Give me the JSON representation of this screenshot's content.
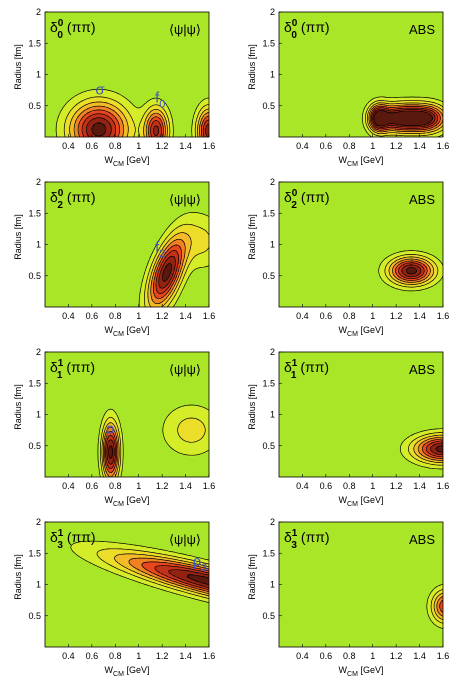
{
  "chart_data": [
    {
      "type": "heatmap",
      "title": "δ0 0 (ππ)",
      "tag": "⟨ψ|ψ⟩",
      "xlabel": "W_CM [GeV]",
      "ylabel": "Radius [fm]",
      "xlim": [
        0.2,
        1.6
      ],
      "ylim": [
        0,
        2
      ],
      "xticks": [
        "0.4",
        "0.6",
        "0.8",
        "1",
        "1.2",
        "1.4",
        "1.6"
      ],
      "yticks": [
        "0.5",
        "1",
        "1.5",
        "2"
      ],
      "grid": false,
      "peaks": [
        {
          "x": 0.66,
          "y": 0.12,
          "sx": 0.17,
          "sy": 0.3,
          "amp": 1.0
        },
        {
          "x": 1.15,
          "y": 0.1,
          "sx": 0.07,
          "sy": 0.25,
          "amp": 0.85
        },
        {
          "x": 1.6,
          "y": 0.1,
          "sx": 0.07,
          "sy": 0.25,
          "amp": 0.9
        }
      ],
      "annotations": [
        {
          "text": "σ",
          "x": 0.63,
          "y": 0.68
        },
        {
          "text": "f0",
          "x": 1.14,
          "y": 0.55
        }
      ]
    },
    {
      "type": "heatmap",
      "title": "δ0 0 (ππ)",
      "tag": "ABS",
      "xlabel": "W_CM [GeV]",
      "ylabel": "Radius [fm]",
      "xlim": [
        0.2,
        1.6
      ],
      "ylim": [
        0,
        2
      ],
      "xticks": [
        "0.4",
        "0.6",
        "0.8",
        "1",
        "1.2",
        "1.4",
        "1.6"
      ],
      "yticks": [
        "0.5",
        "1",
        "1.5",
        "2"
      ],
      "grid": false,
      "peaks": [
        {
          "x": 1.05,
          "y": 0.3,
          "sx": 0.06,
          "sy": 0.15,
          "amp": 0.9
        },
        {
          "x": 1.22,
          "y": 0.3,
          "sx": 0.12,
          "sy": 0.15,
          "amp": 1.0
        },
        {
          "x": 1.45,
          "y": 0.3,
          "sx": 0.12,
          "sy": 0.15,
          "amp": 1.0
        }
      ],
      "annotations": []
    },
    {
      "type": "heatmap",
      "title": "δ0 2 (ππ)",
      "tag": "⟨ψ|ψ⟩",
      "xlabel": "W_CM [GeV]",
      "ylabel": "Radius [fm]",
      "xlim": [
        0.2,
        1.6
      ],
      "ylim": [
        0,
        2
      ],
      "xticks": [
        "0.4",
        "0.6",
        "0.8",
        "1",
        "1.2",
        "1.4",
        "1.6"
      ],
      "yticks": [
        "0.5",
        "1",
        "1.5",
        "2"
      ],
      "grid": false,
      "peaks": [
        {
          "x": 1.24,
          "y": 0.55,
          "sx": 0.11,
          "sy": 0.4,
          "amp": 1.0,
          "rho": 0.6
        },
        {
          "x": 1.55,
          "y": 1.05,
          "sx": 0.12,
          "sy": 0.3,
          "amp": 0.25
        }
      ],
      "annotations": [
        {
          "text": "f2",
          "x": 1.14,
          "y": 0.88
        }
      ]
    },
    {
      "type": "heatmap",
      "title": "δ0 2 (ππ)",
      "tag": "ABS",
      "xlabel": "W_CM [GeV]",
      "ylabel": "Radius [fm]",
      "xlim": [
        0.2,
        1.6
      ],
      "ylim": [
        0,
        2
      ],
      "xticks": [
        "0.4",
        "0.6",
        "0.8",
        "1",
        "1.2",
        "1.4",
        "1.6"
      ],
      "yticks": [
        "0.5",
        "1",
        "1.5",
        "2"
      ],
      "grid": false,
      "peaks": [
        {
          "x": 1.33,
          "y": 0.58,
          "sx": 0.13,
          "sy": 0.15,
          "amp": 1.0
        }
      ],
      "annotations": []
    },
    {
      "type": "heatmap",
      "title": "δ1 1 (ππ)",
      "tag": "⟨ψ|ψ⟩",
      "xlabel": "W_CM [GeV]",
      "ylabel": "Radius [fm]",
      "xlim": [
        0.2,
        1.6
      ],
      "ylim": [
        0,
        2
      ],
      "xticks": [
        "0.4",
        "0.6",
        "0.8",
        "1",
        "1.2",
        "1.4",
        "1.6"
      ],
      "yticks": [
        "0.5",
        "1",
        "1.5",
        "2"
      ],
      "grid": false,
      "peaks": [
        {
          "x": 0.76,
          "y": 0.4,
          "sx": 0.05,
          "sy": 0.32,
          "amp": 1.0
        },
        {
          "x": 1.45,
          "y": 0.75,
          "sx": 0.17,
          "sy": 0.28,
          "amp": 0.28
        }
      ],
      "annotations": [
        {
          "text": "ρ",
          "x": 0.72,
          "y": 0.7
        }
      ]
    },
    {
      "type": "heatmap",
      "title": "δ1 1 (ππ)",
      "tag": "ABS",
      "xlabel": "W_CM [GeV]",
      "ylabel": "Radius [fm]",
      "xlim": [
        0.2,
        1.6
      ],
      "ylim": [
        0,
        2
      ],
      "xticks": [
        "0.4",
        "0.6",
        "0.8",
        "1",
        "1.2",
        "1.4",
        "1.6"
      ],
      "yticks": [
        "0.5",
        "1",
        "1.5",
        "2"
      ],
      "grid": false,
      "peaks": [
        {
          "x": 1.6,
          "y": 0.45,
          "sx": 0.17,
          "sy": 0.15,
          "amp": 1.0
        }
      ],
      "annotations": []
    },
    {
      "type": "heatmap",
      "title": "δ1 3 (ππ)",
      "tag": "⟨ψ|ψ⟩",
      "xlabel": "W_CM [GeV]",
      "ylabel": "Radius [fm]",
      "xlim": [
        0.2,
        1.6
      ],
      "ylim": [
        0,
        2
      ],
      "xticks": [
        "0.4",
        "0.6",
        "0.8",
        "1",
        "1.2",
        "1.4",
        "1.6"
      ],
      "yticks": [
        "0.5",
        "1",
        "1.5",
        "2"
      ],
      "grid": false,
      "peaks": [
        {
          "x": 1.6,
          "y": 1.05,
          "sx": 0.55,
          "sy": 0.3,
          "amp": 1.0,
          "rho": -0.85
        }
      ],
      "annotations": [
        {
          "text": "ρ3",
          "x": 1.46,
          "y": 1.3
        }
      ]
    },
    {
      "type": "heatmap",
      "title": "δ1 3 (ππ)",
      "tag": "ABS",
      "xlabel": "W_CM [GeV]",
      "ylabel": "Radius [fm]",
      "xlim": [
        0.2,
        1.6
      ],
      "ylim": [
        0,
        2
      ],
      "xticks": [
        "0.4",
        "0.6",
        "0.8",
        "1",
        "1.2",
        "1.4",
        "1.6"
      ],
      "yticks": [
        "0.5",
        "1",
        "1.5",
        "2"
      ],
      "grid": false,
      "peaks": [
        {
          "x": 1.62,
          "y": 0.65,
          "sx": 0.08,
          "sy": 0.18,
          "amp": 0.7
        }
      ],
      "annotations": []
    }
  ]
}
